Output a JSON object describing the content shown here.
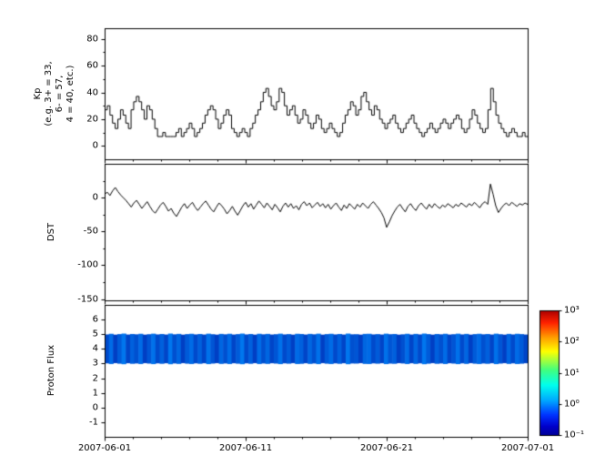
{
  "figure": {
    "background": "#ffffff",
    "x_axis": {
      "tick_labels": [
        "2007-06-01",
        "2007-06-11",
        "2007-06-21",
        "2007-07-01"
      ],
      "range_days": [
        0,
        30
      ]
    }
  },
  "chart_data": [
    {
      "type": "line",
      "series_name": "Kp",
      "ylabel": "Kp (e.g. 3+ = 33, 6- = 57, 4 = 40, etc.)",
      "ylabel_lines": [
        "Kp",
        "(e.g. 3+ = 33,",
        "6- = 57,",
        "4 = 40, etc.)"
      ],
      "x_start": "2007-06-01",
      "x_end": "2007-07-01",
      "ylim": [
        -10,
        88
      ],
      "yticks": [
        0,
        20,
        40,
        60,
        80
      ],
      "yticks_minor": [
        10,
        30,
        50,
        70
      ],
      "line_color": "#000000",
      "step": true,
      "values": [
        27,
        30,
        23,
        17,
        13,
        20,
        27,
        23,
        17,
        13,
        27,
        33,
        37,
        33,
        27,
        20,
        30,
        27,
        20,
        13,
        7,
        7,
        10,
        7,
        7,
        7,
        7,
        10,
        13,
        7,
        10,
        13,
        17,
        13,
        7,
        10,
        13,
        17,
        23,
        27,
        30,
        27,
        20,
        13,
        17,
        23,
        27,
        23,
        13,
        10,
        7,
        10,
        13,
        10,
        7,
        13,
        17,
        23,
        27,
        33,
        40,
        43,
        37,
        30,
        27,
        33,
        43,
        40,
        30,
        23,
        27,
        30,
        23,
        17,
        20,
        27,
        23,
        17,
        13,
        17,
        23,
        20,
        13,
        10,
        13,
        17,
        13,
        10,
        7,
        10,
        17,
        23,
        27,
        33,
        30,
        23,
        27,
        37,
        40,
        33,
        27,
        23,
        30,
        27,
        20,
        17,
        13,
        17,
        20,
        23,
        17,
        13,
        10,
        13,
        17,
        20,
        23,
        17,
        13,
        10,
        7,
        10,
        13,
        17,
        13,
        10,
        13,
        17,
        20,
        17,
        13,
        17,
        20,
        23,
        20,
        13,
        10,
        13,
        20,
        27,
        23,
        17,
        13,
        10,
        13,
        27,
        43,
        33,
        23,
        17,
        13,
        10,
        7,
        10,
        13,
        10,
        7,
        7,
        10,
        7
      ]
    },
    {
      "type": "line",
      "series_name": "DST",
      "ylabel": "DST",
      "x_start": "2007-06-01",
      "x_end": "2007-07-01",
      "ylim": [
        -152,
        50
      ],
      "yticks": [
        0,
        -50,
        -100,
        -150
      ],
      "yticks_minor": [
        25,
        -25,
        -75,
        -125
      ],
      "line_color": "#000000",
      "step": false,
      "values": [
        5,
        8,
        3,
        10,
        15,
        9,
        4,
        0,
        -4,
        -9,
        -14,
        -8,
        -4,
        -10,
        -16,
        -11,
        -6,
        -13,
        -19,
        -23,
        -17,
        -11,
        -7,
        -13,
        -20,
        -16,
        -23,
        -28,
        -21,
        -14,
        -9,
        -16,
        -11,
        -7,
        -14,
        -19,
        -14,
        -9,
        -5,
        -11,
        -17,
        -21,
        -14,
        -8,
        -12,
        -17,
        -24,
        -19,
        -13,
        -20,
        -26,
        -19,
        -12,
        -7,
        -14,
        -9,
        -17,
        -11,
        -5,
        -10,
        -15,
        -8,
        -13,
        -18,
        -10,
        -15,
        -21,
        -13,
        -8,
        -14,
        -9,
        -16,
        -12,
        -18,
        -10,
        -6,
        -12,
        -8,
        -15,
        -11,
        -7,
        -13,
        -9,
        -15,
        -10,
        -17,
        -12,
        -8,
        -14,
        -19,
        -11,
        -16,
        -9,
        -13,
        -17,
        -10,
        -14,
        -8,
        -12,
        -16,
        -10,
        -6,
        -11,
        -16,
        -22,
        -30,
        -44,
        -36,
        -27,
        -20,
        -14,
        -10,
        -16,
        -21,
        -13,
        -9,
        -15,
        -19,
        -12,
        -8,
        -13,
        -17,
        -10,
        -15,
        -9,
        -13,
        -16,
        -11,
        -14,
        -9,
        -12,
        -15,
        -10,
        -13,
        -8,
        -11,
        -14,
        -9,
        -12,
        -7,
        -11,
        -15,
        -9,
        -6,
        -10,
        20,
        5,
        -12,
        -22,
        -16,
        -11,
        -8,
        -12,
        -7,
        -10,
        -13,
        -9,
        -11,
        -8,
        -10
      ]
    },
    {
      "type": "heatmap",
      "series_name": "Proton Flux",
      "ylabel": "Proton Flux",
      "x_start": "2007-06-01",
      "x_end": "2007-07-01",
      "ylim": [
        -2,
        7
      ],
      "yticks": [
        6,
        5,
        4,
        3,
        2,
        1,
        0,
        -1
      ],
      "band": {
        "y_min": 3,
        "y_max": 5
      },
      "value_scale": "log10",
      "band_color_low": "#0000aa",
      "band_color_high": "#0096ff",
      "colorbar": {
        "tick_labels": [
          "10³",
          "10²",
          "10¹",
          "10⁰",
          "10⁻¹"
        ],
        "range": [
          0.1,
          1000
        ],
        "stops": [
          [
            0,
            "#aa0000"
          ],
          [
            0.1,
            "#ff2200"
          ],
          [
            0.22,
            "#ffa000"
          ],
          [
            0.33,
            "#ffff00"
          ],
          [
            0.48,
            "#40ff80"
          ],
          [
            0.6,
            "#00ffee"
          ],
          [
            0.72,
            "#00aaff"
          ],
          [
            0.84,
            "#0033ff"
          ],
          [
            0.93,
            "#0000cc"
          ],
          [
            1,
            "#000099"
          ]
        ]
      },
      "intensities": [
        0.4,
        0.7,
        0.3,
        0.55,
        0.8,
        0.35,
        0.6,
        0.45,
        0.7,
        0.3,
        0.5,
        0.75,
        0.4,
        0.6,
        0.35,
        0.8,
        0.45,
        0.65,
        0.3,
        0.55,
        0.7,
        0.4,
        0.6,
        0.35,
        0.75,
        0.5,
        0.3,
        0.65,
        0.45,
        0.7,
        0.35,
        0.55,
        0.8,
        0.4,
        0.6,
        0.3,
        0.7,
        0.45,
        0.65,
        0.35,
        0.5,
        0.75,
        0.4,
        0.55,
        0.3,
        0.7,
        0.6,
        0.35,
        0.65,
        0.45,
        0.75,
        0.3,
        0.55,
        0.7,
        0.4,
        0.6,
        0.35,
        0.8,
        0.45,
        0.5,
        0.3,
        0.65,
        0.7,
        0.4,
        0.55,
        0.35,
        0.75,
        0.5,
        0.6,
        0.3,
        0.45,
        0.7,
        0.35,
        0.65,
        0.4,
        0.8,
        0.55,
        0.3,
        0.6,
        0.45,
        0.7,
        0.35,
        0.5,
        0.75,
        0.4,
        0.65,
        0.3,
        0.55,
        0.7,
        0.45,
        0.6,
        0.35,
        0.75,
        0.5,
        0.3,
        0.65,
        0.4,
        0.7,
        0.55,
        0.35
      ]
    }
  ]
}
